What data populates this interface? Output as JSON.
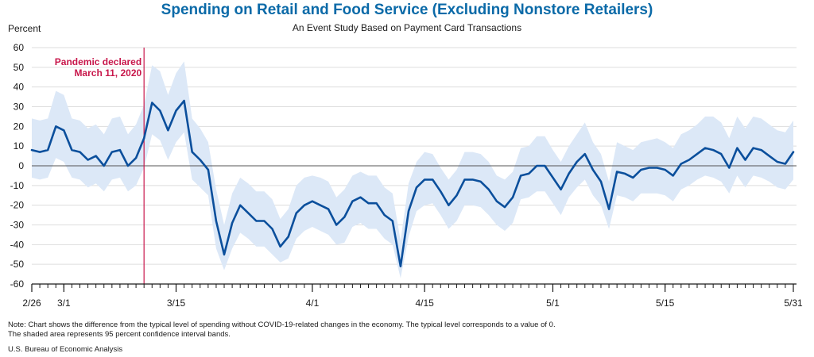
{
  "title": "Spending on Retail and Food Service (Excluding Nonstore Retailers)",
  "subtitle": "An Event Study Based on Payment Card Transactions",
  "ylabel": "Percent",
  "note_line1": "Note: Chart shows the difference from the typical level of spending without COVID-19-related changes in the economy. The typical level corresponds to a value of 0.",
  "note_line2": "The shaded area represents 95 percent confidence interval bands.",
  "source": "U.S. Bureau of Economic Analysis",
  "colors": {
    "line": "#0b4f9c",
    "band": "#dce8f7",
    "annotation": "#c8174b",
    "zero": "#555555",
    "grid": "#dddddd"
  },
  "chart_data": {
    "type": "line",
    "start_date": "2020-02-26",
    "ylim": [
      -60,
      60
    ],
    "yticks": [
      60,
      50,
      40,
      30,
      20,
      10,
      0,
      -10,
      -20,
      -30,
      -40,
      -50,
      -60
    ],
    "xtick_labels": [
      {
        "date": "2020-02-26",
        "label": "2/26"
      },
      {
        "date": "2020-03-01",
        "label": "3/1"
      },
      {
        "date": "2020-03-15",
        "label": "3/15"
      },
      {
        "date": "2020-04-01",
        "label": "4/1"
      },
      {
        "date": "2020-04-15",
        "label": "4/15"
      },
      {
        "date": "2020-05-01",
        "label": "5/1"
      },
      {
        "date": "2020-05-15",
        "label": "5/15"
      },
      {
        "date": "2020-05-31",
        "label": "5/31"
      }
    ],
    "annotation": {
      "date": "2020-03-11",
      "line1": "Pandemic declared",
      "line2": "March 11, 2020"
    },
    "series": [
      {
        "values": [
          8,
          7,
          8,
          20,
          18,
          8,
          7,
          3,
          5,
          0,
          7,
          8,
          0,
          4,
          14,
          32,
          28,
          18,
          28,
          33,
          7,
          3,
          -2,
          -28,
          -45,
          -29,
          -20,
          -24,
          -28,
          -28,
          -32,
          -41,
          -36,
          -24,
          -20,
          -18,
          -20,
          -22,
          -30,
          -26,
          -18,
          -16,
          -19,
          -19,
          -25,
          -28,
          -51,
          -23,
          -11,
          -7,
          -7,
          -13,
          -20,
          -15,
          -7,
          -7,
          -8,
          -12,
          -18,
          -21,
          -16,
          -5,
          -4,
          0,
          0,
          -6,
          -12,
          -4,
          2,
          6,
          -2,
          -8,
          -22,
          -3,
          -4,
          -6,
          -2,
          -1,
          -1,
          -2,
          -5,
          1,
          3,
          6,
          9,
          8,
          6,
          -1,
          9,
          3,
          9,
          8,
          5,
          2,
          1,
          7
        ],
        "upper": [
          24,
          23,
          24,
          38,
          36,
          24,
          23,
          19,
          21,
          16,
          24,
          25,
          16,
          21,
          31,
          51,
          48,
          36,
          47,
          53,
          24,
          19,
          12,
          -12,
          -30,
          -14,
          -6,
          -9,
          -13,
          -13,
          -17,
          -27,
          -22,
          -10,
          -6,
          -5,
          -6,
          -8,
          -16,
          -12,
          -5,
          -3,
          -5,
          -5,
          -11,
          -14,
          -38,
          -9,
          2,
          7,
          6,
          -1,
          -7,
          -2,
          7,
          7,
          6,
          2,
          -5,
          -7,
          -3,
          9,
          10,
          15,
          15,
          8,
          2,
          10,
          16,
          22,
          12,
          6,
          -8,
          12,
          10,
          8,
          12,
          13,
          14,
          12,
          9,
          16,
          18,
          21,
          25,
          25,
          22,
          14,
          25,
          19,
          25,
          24,
          21,
          18,
          17,
          23
        ],
        "lower": [
          -6,
          -7,
          -6,
          4,
          2,
          -6,
          -7,
          -11,
          -9,
          -13,
          -7,
          -6,
          -13,
          -10,
          -1,
          16,
          13,
          3,
          12,
          17,
          -7,
          -11,
          -15,
          -42,
          -53,
          -42,
          -34,
          -37,
          -41,
          -41,
          -45,
          -49,
          -47,
          -37,
          -33,
          -31,
          -33,
          -35,
          -40,
          -39,
          -31,
          -29,
          -32,
          -32,
          -37,
          -40,
          -57,
          -36,
          -23,
          -20,
          -19,
          -25,
          -32,
          -28,
          -20,
          -20,
          -21,
          -25,
          -30,
          -33,
          -29,
          -17,
          -16,
          -13,
          -13,
          -19,
          -25,
          -16,
          -11,
          -7,
          -15,
          -20,
          -32,
          -15,
          -16,
          -18,
          -14,
          -14,
          -14,
          -15,
          -18,
          -12,
          -10,
          -7,
          -5,
          -6,
          -8,
          -14,
          -5,
          -11,
          -5,
          -6,
          -8,
          -11,
          -12,
          -7
        ]
      }
    ]
  }
}
